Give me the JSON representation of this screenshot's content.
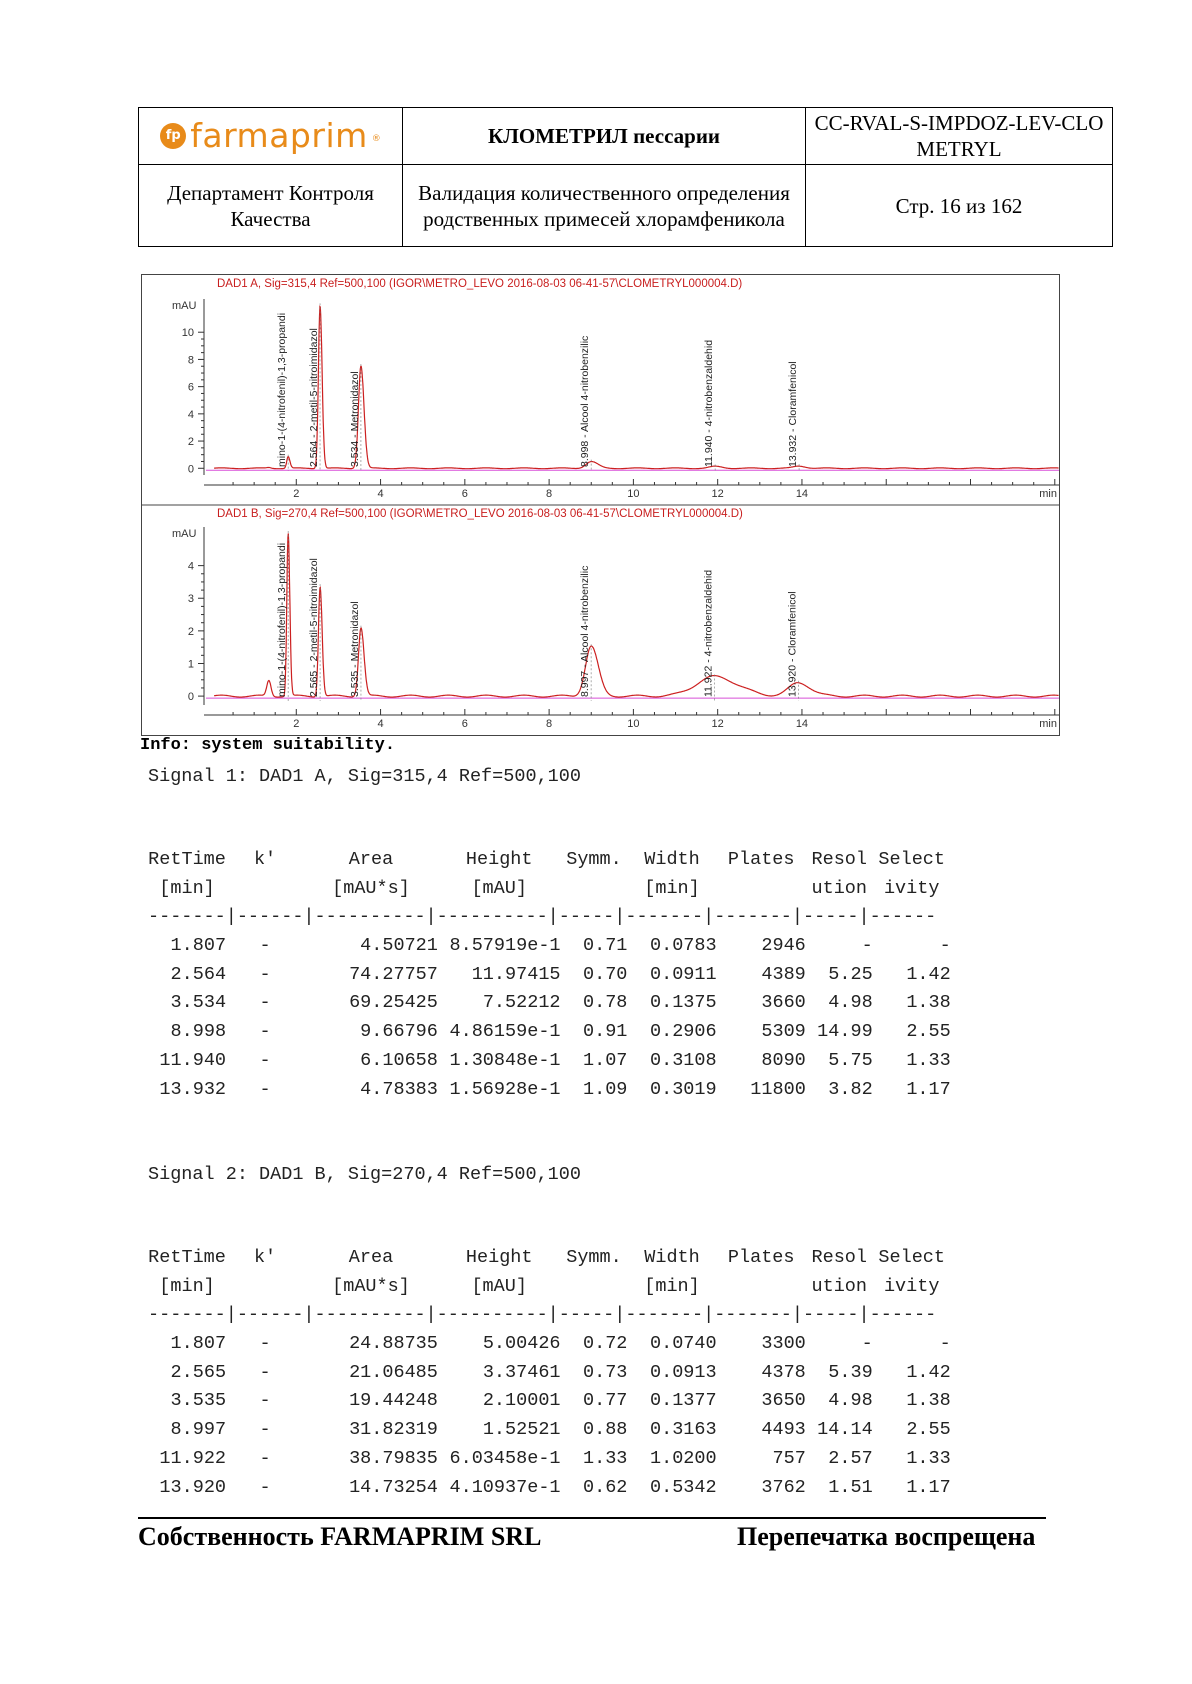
{
  "header": {
    "logo_text": "farmaprim",
    "logo_mark": "fp",
    "logo_reg": "®",
    "product": "КЛОМЕТРИЛ пессарии",
    "doc_code": "CC-RVAL-S-IMPDOZ-LEV-CLOMETRYL",
    "department": "Департамент Контроля Качества",
    "title": "Валидация количественного определения родственных примесей хлорамфеникола",
    "page": "Стр. 16 из 162"
  },
  "chart_data": [
    {
      "type": "line",
      "title": "DAD1 A, Sig=315,4 Ref=500,100 (IGOR\\METRO_LEVO 2016-08-03 06-41-57\\CLOMETRYL000004.D)",
      "ylabel": "mAU",
      "xunit": "min",
      "xlim": [
        0,
        20.1
      ],
      "ylim": [
        -0.2,
        12
      ],
      "yticks": [
        0,
        2,
        4,
        6,
        8,
        10
      ],
      "xticks": [
        2,
        4,
        6,
        8,
        10,
        12,
        14
      ],
      "line_color": "#cc2020",
      "baseline_color": "#d84fd8",
      "peaks": [
        {
          "rt": 1.807,
          "height": 0.86,
          "width": 0.0783,
          "label": "mino-1-(4-nitrofenil)-1,3-propandi"
        },
        {
          "rt": 2.564,
          "height": 11.97,
          "width": 0.0911,
          "label": "2.564 - 2-metil-5-nitroimidazol"
        },
        {
          "rt": 3.534,
          "height": 7.52,
          "width": 0.1375,
          "label": "3.534 - Metronidazol"
        },
        {
          "rt": 8.998,
          "height": 0.49,
          "width": 0.2906,
          "label": "8.998 - Alcool 4-nitrobenzilic"
        },
        {
          "rt": 11.94,
          "height": 0.13,
          "width": 0.3108,
          "label": "11.940 - 4-nitrobenzaldehid"
        },
        {
          "rt": 13.932,
          "height": 0.16,
          "width": 0.3019,
          "label": "13.932 - Cloramfenicol"
        }
      ]
    },
    {
      "type": "line",
      "title": "DAD1 B, Sig=270,4 Ref=500,100 (IGOR\\METRO_LEVO 2016-08-03 06-41-57\\CLOMETRYL000004.D)",
      "ylabel": "mAU",
      "xunit": "min",
      "xlim": [
        0,
        20.1
      ],
      "ylim": [
        -0.15,
        5
      ],
      "yticks": [
        0,
        1,
        2,
        3,
        4
      ],
      "xticks": [
        2,
        4,
        6,
        8,
        10,
        12,
        14
      ],
      "line_color": "#cc2020",
      "baseline_color": "#d84fd8",
      "peaks": [
        {
          "rt": 1.807,
          "height": 5.0,
          "width": 0.074,
          "label": "mino-1-(4-nitrofenil)-1,3-propandi"
        },
        {
          "rt": 2.565,
          "height": 3.37,
          "width": 0.0913,
          "label": "2.565 - 2-metil-5-nitroimidazol"
        },
        {
          "rt": 3.535,
          "height": 2.1,
          "width": 0.1377,
          "label": "3.535 - Metronidazol"
        },
        {
          "rt": 8.997,
          "height": 1.53,
          "width": 0.3163,
          "label": "8.997 - Alcool 4-nitrobenzilic"
        },
        {
          "rt": 11.922,
          "height": 0.6,
          "width": 1.02,
          "label": "11.922 - 4-nitrobenzaldehid"
        },
        {
          "rt": 13.92,
          "height": 0.41,
          "width": 0.5342,
          "label": "13.920 - Cloramfenicol"
        }
      ]
    }
  ],
  "info_line": "Info: system suitability.",
  "signal1": {
    "title": "Signal 1: DAD1 A, Sig=315,4 Ref=500,100",
    "header1": [
      "RetTime",
      "k'",
      "Area",
      "Height",
      "Symm.",
      "Width",
      "Plates",
      "Resol",
      "Select"
    ],
    "header2": [
      "[min]",
      "",
      "[mAU*s]",
      "[mAU]",
      "",
      "[min]",
      "",
      "ution",
      "ivity"
    ],
    "rows": [
      [
        "1.807",
        "-",
        "4.50721",
        "8.57919e-1",
        "0.71",
        "0.0783",
        "2946",
        "-",
        "-"
      ],
      [
        "2.564",
        "-",
        "74.27757",
        "11.97415",
        "0.70",
        "0.0911",
        "4389",
        "5.25",
        "1.42"
      ],
      [
        "3.534",
        "-",
        "69.25425",
        "7.52212",
        "0.78",
        "0.1375",
        "3660",
        "4.98",
        "1.38"
      ],
      [
        "8.998",
        "-",
        "9.66796",
        "4.86159e-1",
        "0.91",
        "0.2906",
        "5309",
        "14.99",
        "2.55"
      ],
      [
        "11.940",
        "-",
        "6.10658",
        "1.30848e-1",
        "1.07",
        "0.3108",
        "8090",
        "5.75",
        "1.33"
      ],
      [
        "13.932",
        "-",
        "4.78383",
        "1.56928e-1",
        "1.09",
        "0.3019",
        "11800",
        "3.82",
        "1.17"
      ]
    ]
  },
  "signal2": {
    "title": "Signal 2: DAD1 B, Sig=270,4 Ref=500,100",
    "header1": [
      "RetTime",
      "k'",
      "Area",
      "Height",
      "Symm.",
      "Width",
      "Plates",
      "Resol",
      "Select"
    ],
    "header2": [
      "[min]",
      "",
      "[mAU*s]",
      "[mAU]",
      "",
      "[min]",
      "",
      "ution",
      "ivity"
    ],
    "rows": [
      [
        "1.807",
        "-",
        "24.88735",
        "5.00426",
        "0.72",
        "0.0740",
        "3300",
        "-",
        "-"
      ],
      [
        "2.565",
        "-",
        "21.06485",
        "3.37461",
        "0.73",
        "0.0913",
        "4378",
        "5.39",
        "1.42"
      ],
      [
        "3.535",
        "-",
        "19.44248",
        "2.10001",
        "0.77",
        "0.1377",
        "3650",
        "4.98",
        "1.38"
      ],
      [
        "8.997",
        "-",
        "31.82319",
        "1.52521",
        "0.88",
        "0.3163",
        "4493",
        "14.14",
        "2.55"
      ],
      [
        "11.922",
        "-",
        "38.79835",
        "6.03458e-1",
        "1.33",
        "1.0200",
        "757",
        "2.57",
        "1.33"
      ],
      [
        "13.920",
        "-",
        "14.73254",
        "4.10937e-1",
        "0.62",
        "0.5342",
        "3762",
        "1.51",
        "1.17"
      ]
    ]
  },
  "table_separator": "-------|------|----------|----------|-----|-------|-------|-----|------",
  "footer": {
    "left": "Собственность FARMAPRIM SRL",
    "right": "Перепечатка воспрещена"
  }
}
